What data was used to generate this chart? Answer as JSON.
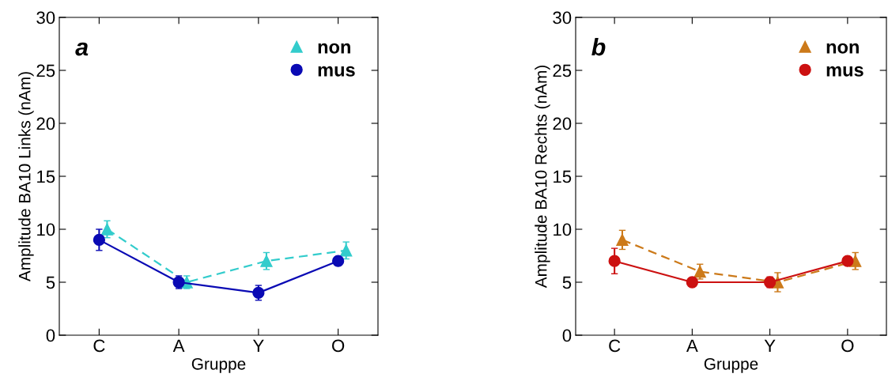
{
  "chart_data": [
    {
      "type": "line",
      "categories": [
        "C",
        "A",
        "Y",
        "O"
      ],
      "xlabel": "Gruppe",
      "ylabel": "Amplitude BA10 Links (nAm)",
      "annotations": [
        "a"
      ],
      "ylim": [
        0,
        30
      ],
      "yticks": [
        0,
        5,
        10,
        15,
        20,
        25,
        30
      ],
      "legend": "top right",
      "grid": false,
      "series": [
        {
          "name": "non",
          "color": "#33cccc",
          "values": [
            10,
            5,
            7,
            8
          ],
          "errors": [
            0.8,
            0.6,
            0.8,
            0.8
          ],
          "marker": "triangle",
          "line_style": "dashed"
        },
        {
          "name": "mus",
          "color": "#0a0ab4",
          "values": [
            9,
            5,
            4,
            7
          ],
          "errors": [
            1.0,
            0.6,
            0.7,
            0.4
          ],
          "marker": "circle",
          "line_style": "solid"
        }
      ]
    },
    {
      "type": "line",
      "categories": [
        "C",
        "A",
        "Y",
        "O"
      ],
      "xlabel": "Gruppe",
      "ylabel": "Amplitude BA10 Rechts (nAm)",
      "annotations": [
        "b"
      ],
      "ylim": [
        0,
        30
      ],
      "yticks": [
        0,
        5,
        10,
        15,
        20,
        25,
        30
      ],
      "legend": "top right",
      "grid": false,
      "series": [
        {
          "name": "non",
          "color": "#cc7a1a",
          "values": [
            9,
            6,
            5,
            7
          ],
          "errors": [
            0.9,
            0.7,
            0.9,
            0.8
          ],
          "marker": "triangle",
          "line_style": "dashed"
        },
        {
          "name": "mus",
          "color": "#cc1111",
          "values": [
            7,
            5,
            5,
            7
          ],
          "errors": [
            1.2,
            0.4,
            0.5,
            0.3
          ],
          "marker": "circle",
          "line_style": "solid"
        }
      ]
    }
  ]
}
